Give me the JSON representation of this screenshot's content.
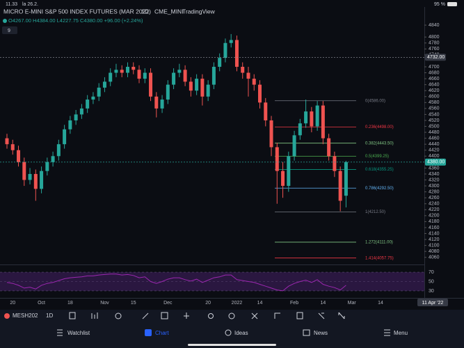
{
  "status": {
    "time": "11.33",
    "date": "la 26.2.",
    "battery": "95 %"
  },
  "header": {
    "title": "MICRO E-MINI S&P 500 INDEX FUTURES (MAR 2022)",
    "interval": "1D",
    "exchange": "CME_MINI",
    "brand": "TradingView",
    "ohlc": "O4267.00 H4384.00 L4227.75 C4380.00 +96.00 (+2.24%)",
    "indicators": "9"
  },
  "chart_data": {
    "type": "candlestick",
    "up_color": "#26a69a",
    "down_color": "#ef5350",
    "categories": [
      null,
      "20",
      null,
      null,
      null,
      null,
      "Oct",
      null,
      null,
      null,
      null,
      "18",
      null,
      null,
      null,
      null,
      null,
      "Nov",
      null,
      null,
      null,
      null,
      "15",
      null,
      null,
      null,
      null,
      null,
      "Dec",
      null,
      null,
      null,
      null,
      null,
      null,
      "20",
      null,
      null,
      null,
      null,
      "2022",
      null,
      null,
      null,
      "14",
      null,
      null,
      null,
      null,
      null,
      "Feb",
      null,
      null,
      null,
      null,
      "14",
      null,
      null,
      null,
      null,
      "Mar",
      null,
      null,
      null,
      null,
      "14"
    ],
    "open": [
      4460,
      4440,
      4420,
      4380,
      4320,
      4340,
      4290,
      4350,
      4380,
      4400,
      4440,
      4490,
      4520,
      4540,
      4560,
      4590,
      4600,
      4630,
      4650,
      4680,
      4690,
      4680,
      4700,
      4690,
      4660,
      4680,
      4600,
      4560,
      4590,
      4640,
      4680,
      4690,
      4650,
      4620,
      4660,
      4600,
      4640,
      4700,
      4730,
      4780,
      4790,
      4700,
      4680,
      4660,
      4640,
      4580,
      4520,
      4430,
      4350,
      4300,
      4400,
      4470,
      4510,
      4550,
      4500,
      4570,
      4460,
      4400,
      4350,
      4267,
      null,
      null,
      null,
      null,
      null,
      null
    ],
    "high": [
      4475,
      4455,
      4435,
      4395,
      4360,
      4355,
      4365,
      4395,
      4415,
      4455,
      4505,
      4535,
      4555,
      4575,
      4605,
      4615,
      4645,
      4665,
      4695,
      4710,
      4705,
      4715,
      4715,
      4705,
      4695,
      4695,
      4615,
      4605,
      4655,
      4695,
      4710,
      4705,
      4665,
      4675,
      4675,
      4655,
      4715,
      4745,
      4795,
      4810,
      4805,
      4715,
      4700,
      4675,
      4655,
      4595,
      4535,
      4445,
      4380,
      4415,
      4485,
      4525,
      4590,
      4565,
      4585,
      4585,
      4475,
      4415,
      4365,
      4384,
      null,
      null,
      null,
      null,
      null,
      null
    ],
    "low": [
      4425,
      4405,
      4365,
      4300,
      4305,
      4250,
      4275,
      4335,
      4365,
      4385,
      4425,
      4475,
      4505,
      4525,
      4545,
      4575,
      4585,
      4615,
      4635,
      4665,
      4665,
      4665,
      4675,
      4645,
      4645,
      4585,
      4530,
      4545,
      4575,
      4625,
      4665,
      4635,
      4600,
      4605,
      4570,
      4585,
      4625,
      4685,
      4715,
      4765,
      4685,
      4660,
      4600,
      4620,
      4560,
      4500,
      4400,
      4240,
      4260,
      4280,
      4385,
      4455,
      4495,
      4480,
      4485,
      4440,
      4385,
      4330,
      4215,
      4227.75,
      null,
      null,
      null,
      null,
      null,
      null
    ],
    "close": [
      4440,
      4420,
      4380,
      4320,
      4340,
      4290,
      4350,
      4380,
      4400,
      4440,
      4490,
      4520,
      4540,
      4560,
      4590,
      4600,
      4630,
      4650,
      4680,
      4690,
      4680,
      4700,
      4690,
      4660,
      4680,
      4600,
      4560,
      4590,
      4640,
      4680,
      4690,
      4650,
      4620,
      4660,
      4600,
      4640,
      4700,
      4730,
      4780,
      4790,
      4700,
      4680,
      4660,
      4640,
      4580,
      4520,
      4430,
      4350,
      4300,
      4400,
      4470,
      4510,
      4550,
      4500,
      4570,
      4460,
      4400,
      4350,
      4250,
      4380,
      null,
      null,
      null,
      null,
      null,
      null
    ],
    "ylim": [
      4036,
      4901
    ],
    "yticks": [
      4840,
      4800,
      4780,
      4760,
      4740,
      4700,
      4680,
      4660,
      4640,
      4620,
      4600,
      4580,
      4560,
      4540,
      4520,
      4500,
      4480,
      4460,
      4440,
      4420,
      4400,
      4360,
      4340,
      4320,
      4300,
      4280,
      4260,
      4240,
      4220,
      4200,
      4180,
      4160,
      4140,
      4120,
      4100,
      4080,
      4060
    ],
    "price_labels": [
      {
        "value": 4732,
        "label": "4732.00",
        "color": "#363a45"
      },
      {
        "value": 4380,
        "label": "4380.00",
        "color": "#26a69a"
      }
    ],
    "fib_levels": [
      {
        "value": 4586,
        "label": "0(4586.00)",
        "color": "#787b86"
      },
      {
        "value": 4498,
        "label": "0.236(4498.00)",
        "color": "#f23645"
      },
      {
        "value": 4443.5,
        "label": "0.382(4443.50)",
        "color": "#81c784"
      },
      {
        "value": 4399.25,
        "label": "0.5(4399.25)",
        "color": "#4caf50"
      },
      {
        "value": 4355.25,
        "label": "0.618(4355.25)",
        "color": "#089981"
      },
      {
        "value": 4292.5,
        "label": "0.786(4292.50)",
        "color": "#64b5f6"
      },
      {
        "value": 4212.5,
        "label": "1(4212.50)",
        "color": "#787b86"
      },
      {
        "value": 4111,
        "label": "1.272(4111.00)",
        "color": "#81c784"
      },
      {
        "value": 4057.75,
        "label": "1.414(4057.75)",
        "color": "#f23645"
      }
    ],
    "rsi": {
      "color": "#9c27b0",
      "values": [
        48,
        46,
        42,
        36,
        38,
        34,
        42,
        46,
        48,
        52,
        56,
        58,
        59,
        60,
        62,
        62,
        64,
        65,
        66,
        66,
        64,
        65,
        63,
        58,
        60,
        50,
        46,
        50,
        55,
        58,
        58,
        54,
        51,
        55,
        48,
        53,
        58,
        60,
        64,
        64,
        54,
        52,
        50,
        48,
        44,
        40,
        36,
        32,
        30,
        40,
        46,
        50,
        53,
        48,
        54,
        44,
        40,
        37,
        32,
        42,
        null,
        null,
        null,
        null,
        null,
        null
      ],
      "ylim": [
        15,
        82
      ],
      "yticks": [
        70,
        50,
        30
      ]
    },
    "crosshair_date": "11 Apr '22"
  },
  "toolbar": {
    "symbol": "MESH202",
    "interval": "1D"
  },
  "tabs": [
    "Watchlist",
    "Chart",
    "Ideas",
    "News",
    "Menu"
  ]
}
